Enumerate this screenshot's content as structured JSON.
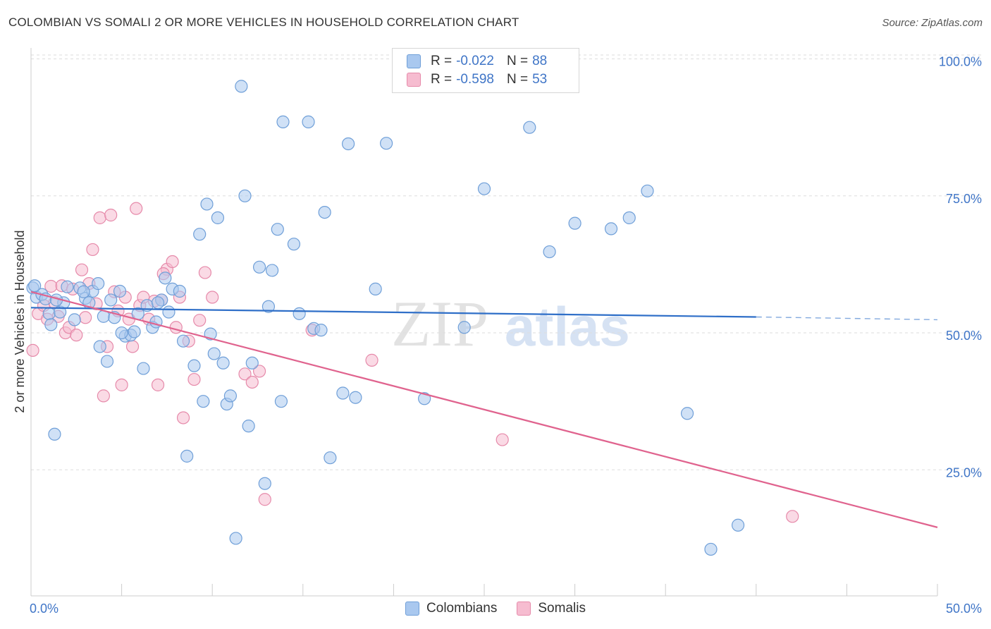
{
  "title": "COLOMBIAN VS SOMALI 2 OR MORE VEHICLES IN HOUSEHOLD CORRELATION CHART",
  "source": "Source: ZipAtlas.com",
  "colors": {
    "blue_fill": "#a9c8ef",
    "blue_stroke": "#6f9fd8",
    "blue_line": "#2f6fc8",
    "pink_fill": "#f6bcd0",
    "pink_stroke": "#e68aaa",
    "pink_line": "#e0638e",
    "axis_label": "#3f75c7",
    "grid": "#dddddd"
  },
  "legend": {
    "rows": [
      {
        "r_label": "R =",
        "r_value": "-0.022",
        "n_label": "N =",
        "n_value": "88"
      },
      {
        "r_label": "R =",
        "r_value": "-0.598",
        "n_label": "N =",
        "n_value": "53"
      }
    ]
  },
  "watermark": {
    "zip": "ZIP",
    "atlas": "atlas"
  },
  "chart_data": {
    "type": "scatter",
    "title": "COLOMBIAN VS SOMALI 2 OR MORE VEHICLES IN HOUSEHOLD CORRELATION CHART",
    "xlabel": "",
    "ylabel": "2 or more Vehicles in Household",
    "xlim": [
      0,
      50
    ],
    "ylim": [
      2,
      102
    ],
    "x_tick_labels": [
      "0.0%",
      "50.0%"
    ],
    "y_ticks": [
      25,
      50,
      75,
      100
    ],
    "y_tick_labels": [
      "25.0%",
      "50.0%",
      "75.0%",
      "100.0%"
    ],
    "grid": true,
    "legend_position": "bottom",
    "series": [
      {
        "name": "Colombians",
        "color": "#a9c8ef",
        "r": "-0.022",
        "n": "88",
        "trend": {
          "x0": 0,
          "y0": 54.6,
          "x1": 40,
          "y1": 52.9,
          "dash_x1": 50,
          "dash_y1": 52.4
        },
        "points": [
          [
            0.1,
            58.2
          ],
          [
            0.3,
            56.5
          ],
          [
            0.6,
            57.0
          ],
          [
            0.8,
            56.2
          ],
          [
            1.0,
            53.5
          ],
          [
            1.1,
            51.5
          ],
          [
            1.3,
            31.5
          ],
          [
            1.6,
            53.8
          ],
          [
            1.8,
            55.5
          ],
          [
            2.0,
            58.4
          ],
          [
            2.4,
            52.4
          ],
          [
            2.7,
            58.2
          ],
          [
            3.0,
            56.3
          ],
          [
            3.2,
            55.5
          ],
          [
            3.4,
            57.6
          ],
          [
            3.7,
            59.0
          ],
          [
            3.8,
            47.5
          ],
          [
            4.0,
            53.0
          ],
          [
            4.2,
            44.8
          ],
          [
            4.4,
            56.0
          ],
          [
            4.6,
            52.8
          ],
          [
            4.9,
            57.6
          ],
          [
            5.2,
            49.4
          ],
          [
            5.5,
            49.6
          ],
          [
            5.7,
            50.2
          ],
          [
            5.9,
            53.5
          ],
          [
            6.2,
            43.5
          ],
          [
            6.4,
            55.0
          ],
          [
            6.7,
            51.0
          ],
          [
            6.9,
            52.0
          ],
          [
            7.2,
            56.0
          ],
          [
            7.4,
            60.0
          ],
          [
            7.6,
            53.8
          ],
          [
            7.8,
            58.0
          ],
          [
            8.2,
            57.6
          ],
          [
            8.4,
            48.5
          ],
          [
            8.6,
            27.5
          ],
          [
            9.0,
            44.0
          ],
          [
            9.3,
            68.0
          ],
          [
            9.5,
            37.5
          ],
          [
            9.7,
            73.5
          ],
          [
            9.9,
            49.8
          ],
          [
            10.1,
            46.2
          ],
          [
            10.3,
            71.0
          ],
          [
            10.6,
            44.5
          ],
          [
            10.8,
            37.0
          ],
          [
            11.0,
            38.5
          ],
          [
            11.3,
            12.5
          ],
          [
            11.6,
            95.0
          ],
          [
            11.8,
            75.0
          ],
          [
            12.0,
            33.0
          ],
          [
            12.2,
            44.5
          ],
          [
            12.6,
            62.0
          ],
          [
            12.9,
            22.5
          ],
          [
            13.1,
            54.8
          ],
          [
            13.3,
            61.4
          ],
          [
            13.6,
            68.9
          ],
          [
            13.8,
            37.5
          ],
          [
            13.9,
            88.5
          ],
          [
            14.5,
            66.2
          ],
          [
            14.8,
            53.5
          ],
          [
            15.3,
            88.5
          ],
          [
            15.6,
            50.8
          ],
          [
            16.2,
            72.0
          ],
          [
            16.5,
            27.2
          ],
          [
            17.2,
            39.0
          ],
          [
            17.5,
            84.5
          ],
          [
            17.9,
            38.2
          ],
          [
            19.0,
            58.0
          ],
          [
            19.6,
            84.6
          ],
          [
            21.7,
            38.0
          ],
          [
            23.9,
            51.0
          ],
          [
            25.0,
            76.3
          ],
          [
            27.5,
            87.5
          ],
          [
            28.6,
            64.8
          ],
          [
            30.0,
            70.0
          ],
          [
            32.0,
            69.0
          ],
          [
            33.0,
            71.0
          ],
          [
            34.0,
            75.9
          ],
          [
            36.2,
            35.3
          ],
          [
            37.5,
            10.5
          ],
          [
            39.0,
            14.9
          ],
          [
            0.2,
            58.6
          ],
          [
            1.4,
            56.0
          ],
          [
            2.9,
            57.5
          ],
          [
            5.0,
            50.0
          ],
          [
            7.0,
            55.5
          ],
          [
            16.0,
            50.5
          ]
        ]
      },
      {
        "name": "Somalis",
        "color": "#f6bcd0",
        "r": "-0.598",
        "n": "53",
        "trend": {
          "x0": 0,
          "y0": 57.5,
          "x1": 50,
          "y1": 14.5
        },
        "points": [
          [
            0.1,
            46.8
          ],
          [
            0.4,
            53.5
          ],
          [
            0.7,
            55.0
          ],
          [
            0.9,
            52.5
          ],
          [
            1.1,
            58.5
          ],
          [
            1.3,
            55.5
          ],
          [
            1.5,
            53.0
          ],
          [
            1.7,
            58.6
          ],
          [
            1.9,
            50.0
          ],
          [
            2.1,
            51.0
          ],
          [
            2.3,
            58.0
          ],
          [
            2.5,
            49.6
          ],
          [
            2.8,
            61.5
          ],
          [
            3.0,
            52.8
          ],
          [
            3.2,
            59.0
          ],
          [
            3.4,
            65.2
          ],
          [
            3.6,
            55.3
          ],
          [
            3.8,
            71.0
          ],
          [
            4.0,
            38.5
          ],
          [
            4.2,
            47.5
          ],
          [
            4.4,
            71.5
          ],
          [
            4.6,
            57.5
          ],
          [
            4.8,
            54.0
          ],
          [
            5.0,
            40.5
          ],
          [
            5.2,
            56.5
          ],
          [
            5.4,
            52.5
          ],
          [
            5.6,
            47.5
          ],
          [
            5.8,
            72.7
          ],
          [
            6.0,
            55.0
          ],
          [
            6.2,
            56.5
          ],
          [
            6.5,
            52.5
          ],
          [
            6.8,
            55.8
          ],
          [
            7.0,
            40.5
          ],
          [
            7.2,
            56.0
          ],
          [
            7.5,
            61.6
          ],
          [
            7.8,
            63.0
          ],
          [
            8.0,
            51.0
          ],
          [
            8.2,
            56.5
          ],
          [
            8.4,
            34.5
          ],
          [
            8.7,
            48.5
          ],
          [
            9.0,
            41.5
          ],
          [
            9.3,
            52.3
          ],
          [
            9.6,
            61.0
          ],
          [
            10.0,
            56.5
          ],
          [
            11.8,
            42.5
          ],
          [
            12.2,
            41.0
          ],
          [
            12.6,
            43.0
          ],
          [
            12.9,
            19.6
          ],
          [
            15.5,
            50.5
          ],
          [
            18.8,
            45.0
          ],
          [
            26.0,
            30.5
          ],
          [
            42.0,
            16.5
          ],
          [
            7.3,
            60.8
          ]
        ]
      }
    ]
  }
}
